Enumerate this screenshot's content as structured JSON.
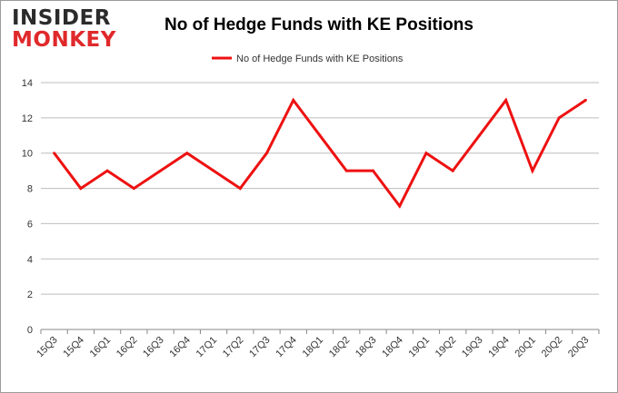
{
  "logo": {
    "line1": "INSIDER",
    "line2": "MONKEY"
  },
  "colors": {
    "series": "#ee1111",
    "grid": "#bdbdbd",
    "axis": "#888888"
  },
  "chart_data": {
    "type": "line",
    "title": "No of Hedge Funds with KE Positions",
    "xlabel": "",
    "ylabel": "",
    "ylim": [
      0,
      14
    ],
    "yticks": [
      0,
      2,
      4,
      6,
      8,
      10,
      12,
      14
    ],
    "grid": true,
    "legend_position": "top-center",
    "categories": [
      "15Q3",
      "15Q4",
      "16Q1",
      "16Q2",
      "16Q3",
      "16Q4",
      "17Q1",
      "17Q2",
      "17Q3",
      "17Q4",
      "18Q1",
      "18Q2",
      "18Q3",
      "18Q4",
      "19Q1",
      "19Q2",
      "19Q3",
      "19Q4",
      "20Q1",
      "20Q2",
      "20Q3"
    ],
    "series": [
      {
        "name": "No of Hedge Funds with KE Positions",
        "values": [
          10,
          8,
          9,
          8,
          9,
          10,
          9,
          8,
          10,
          13,
          11,
          9,
          9,
          7,
          10,
          9,
          11,
          13,
          9,
          12,
          13
        ]
      }
    ]
  }
}
